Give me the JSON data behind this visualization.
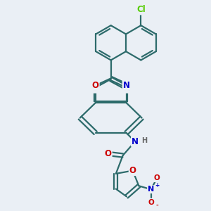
{
  "background_color": "#eaeff5",
  "bond_color": "#2d6b6b",
  "bond_width": 1.6,
  "atom_colors": {
    "C": "#2d6b6b",
    "N": "#0000cc",
    "O": "#cc0000",
    "Cl": "#55cc00",
    "H": "#666666"
  },
  "font_size": 8.5
}
